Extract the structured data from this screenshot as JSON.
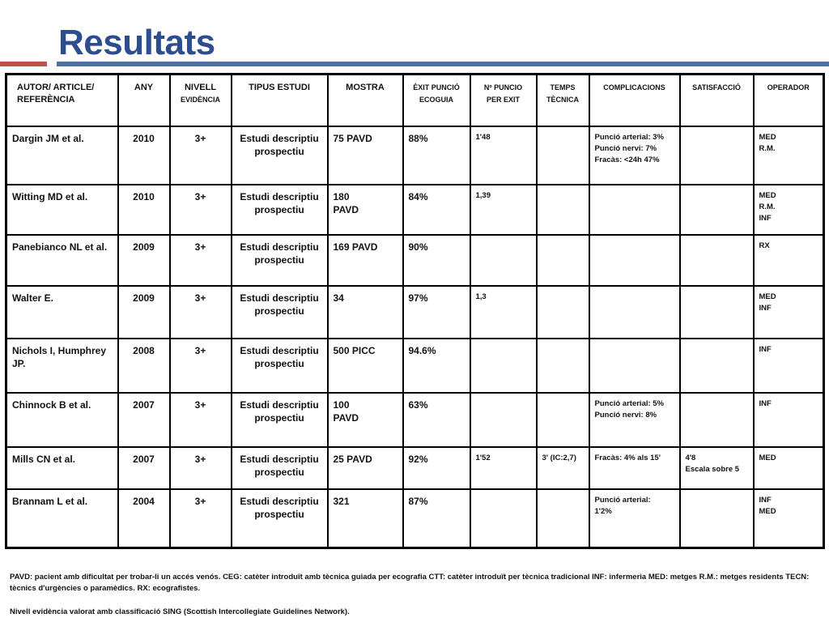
{
  "title": "Resultats",
  "headers": {
    "autor": "AUTOR/ ARTICLE/ REFERÈNCIA",
    "any": "ANY",
    "nivell": "NIVELL",
    "nivell_sub": "EVIDÈNCIA",
    "tipus": "TIPUS ESTUDI",
    "mostra": "MOSTRA",
    "exit": "ÈXIT PUNCIÓ ECOGUIA",
    "npuncio": "Nº PUNCIO PER EXIT",
    "temps": "TEMPS TÈCNICA",
    "complicacions": "COMPLICACIONS",
    "satisfaccio": "SATISFACCIÓ",
    "operador": "OPERADOR"
  },
  "rows": [
    {
      "autor": "Dargin JM et al.",
      "any": "2010",
      "nivell": "3+",
      "tipus": "Estudi descriptiu prospectiu",
      "mostra": "75 PAVD",
      "exit": "88%",
      "npuncio": "1'48",
      "temps": "",
      "complicacions": "Punció arterial: 3%\nPunció nervi: 7%\nFracàs: <24h 47%",
      "satisfaccio": "",
      "operador": "MED\nR.M."
    },
    {
      "autor": "Witting MD et al.",
      "any": "2010",
      "nivell": "3+",
      "tipus": "Estudi descriptiu prospectiu",
      "mostra": "180\nPAVD",
      "exit": "84%",
      "npuncio": "1,39",
      "temps": "",
      "complicacions": "",
      "satisfaccio": "",
      "operador": "MED\nR.M.\nINF"
    },
    {
      "autor": "Panebianco NL et al.",
      "any": "2009",
      "nivell": "3+",
      "tipus": "Estudi descriptiu prospectiu",
      "mostra": "169 PAVD",
      "exit": "90%",
      "npuncio": "",
      "temps": "",
      "complicacions": "",
      "satisfaccio": "",
      "operador": "RX"
    },
    {
      "autor": "Walter E.",
      "any": "2009",
      "nivell": "3+",
      "tipus": "Estudi descriptiu prospectiu",
      "mostra": "34",
      "exit": "97%",
      "npuncio": "1,3",
      "temps": "",
      "complicacions": "",
      "satisfaccio": "",
      "operador": "MED\nINF"
    },
    {
      "autor": "Nichols I, Humphrey JP.",
      "any": "2008",
      "nivell": "3+",
      "tipus": "Estudi descriptiu prospectiu",
      "mostra": "500 PICC",
      "exit": "94.6%",
      "npuncio": "",
      "temps": "",
      "complicacions": "",
      "satisfaccio": "",
      "operador": "INF"
    },
    {
      "autor": "Chinnock B et al.",
      "any": "2007",
      "nivell": "3+",
      "tipus": "Estudi descriptiu prospectiu",
      "mostra": "100\nPAVD",
      "exit": "63%",
      "npuncio": "",
      "temps": "",
      "complicacions": "Punció arterial: 5%\nPunció nervi: 8%",
      "satisfaccio": "",
      "operador": "INF"
    },
    {
      "autor": "Mills CN et al.",
      "any": "2007",
      "nivell": "3+",
      "tipus": "Estudi descriptiu prospectiu",
      "mostra": "25 PAVD",
      "exit": "92%",
      "npuncio": "1'52",
      "temps": "3' (IC:2,7)",
      "complicacions": "Fracàs: 4% als 15'",
      "satisfaccio": "4'8\nEscala sobre 5",
      "operador": "MED"
    },
    {
      "autor": "Brannam L et al.",
      "any": "2004",
      "nivell": "3+",
      "tipus": "Estudi descriptiu prospectiu",
      "mostra": "321",
      "exit": "87%",
      "npuncio": "",
      "temps": "",
      "complicacions": "Punció arterial:\n1'2%",
      "satisfaccio": "",
      "operador": "INF\nMED"
    }
  ],
  "footnote1": "PAVD: pacient amb dificultat per trobar-li un accés venós. CEG: catèter introduït amb tècnica guiada per ecografia CTT: catèter introduït per tècnica tradicional INF: infermeria MED: metges R.M.: metges residents TECN: tècnics d'urgències o paramèdics. RX: ecografistes.",
  "footnote2": "Nivell evidència valorat amb classificació SING (Scottish Intercollegiate Guidelines Network)."
}
